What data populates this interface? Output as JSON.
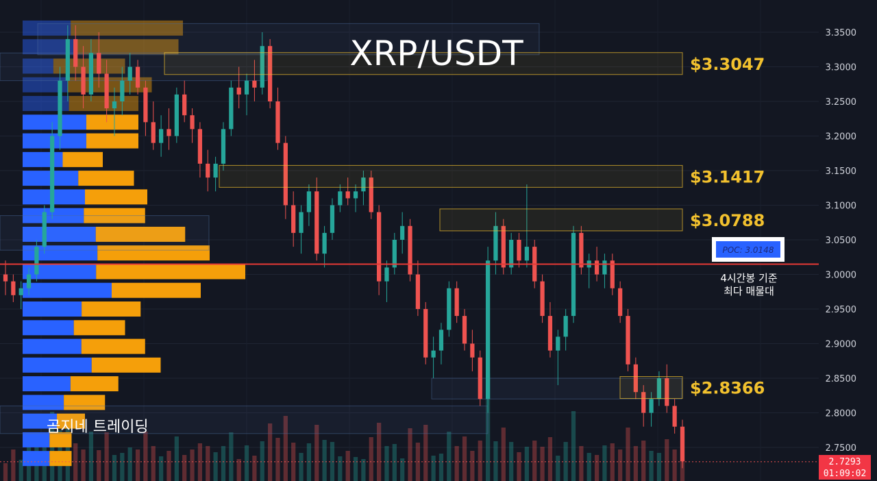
{
  "chart_data": {
    "type": "candlestick",
    "title": "XRP/USDT",
    "watermark": "곰지네 트레이딩",
    "y_axis": {
      "ylim": [
        2.72,
        3.37
      ],
      "tick_labels": [
        "3.3500",
        "3.3000",
        "3.2500",
        "3.2000",
        "3.1500",
        "3.1000",
        "3.0500",
        "3.0000",
        "2.9500",
        "2.9000",
        "2.8500",
        "2.8000",
        "2.7500"
      ],
      "tick_values": [
        3.35,
        3.3,
        3.25,
        3.2,
        3.15,
        3.1,
        3.05,
        3.0,
        2.95,
        2.9,
        2.85,
        2.8,
        2.75
      ]
    },
    "levels": [
      {
        "label": "$3.3047",
        "value": 3.3047
      },
      {
        "label": "$3.1417",
        "value": 3.1417
      },
      {
        "label": "$3.0788",
        "value": 3.0788
      },
      {
        "label": "$2.8366",
        "value": 2.8366
      }
    ],
    "poc": {
      "label": "POC: 3.0148",
      "value": 3.0148,
      "note_line1": "4시간봉 기준",
      "note_line2": "최다 매물대"
    },
    "last_price": {
      "value_label": "2.7293",
      "countdown": "01:09:02"
    },
    "colors": {
      "background": "#131722",
      "up": "#26a69a",
      "down": "#ef5350",
      "level": "#f2c12e",
      "poc_line": "#e53935",
      "vp_buy": "#2962ff",
      "vp_sell": "#f59f0a"
    },
    "volume_profile": [
      {
        "price": 3.355,
        "buy": 0.3,
        "sell": 0.7
      },
      {
        "price": 3.328,
        "buy": 0.35,
        "sell": 0.65
      },
      {
        "price": 3.3,
        "buy": 0.3,
        "sell": 0.7
      },
      {
        "price": 3.273,
        "buy": 0.35,
        "sell": 0.65
      },
      {
        "price": 3.246,
        "buy": 0.4,
        "sell": 0.6
      },
      {
        "price": 3.219,
        "buy": 0.55,
        "sell": 0.45
      },
      {
        "price": 3.192,
        "buy": 0.55,
        "sell": 0.45
      },
      {
        "price": 3.165,
        "buy": 0.5,
        "sell": 0.5
      },
      {
        "price": 3.138,
        "buy": 0.5,
        "sell": 0.5
      },
      {
        "price": 3.111,
        "buy": 0.5,
        "sell": 0.5
      },
      {
        "price": 3.084,
        "buy": 0.5,
        "sell": 0.5
      },
      {
        "price": 3.057,
        "buy": 0.45,
        "sell": 0.55
      },
      {
        "price": 3.03,
        "buy": 0.4,
        "sell": 0.6
      },
      {
        "price": 3.003,
        "buy": 0.33,
        "sell": 0.67
      },
      {
        "price": 2.976,
        "buy": 0.5,
        "sell": 0.5
      },
      {
        "price": 2.949,
        "buy": 0.5,
        "sell": 0.5
      },
      {
        "price": 2.922,
        "buy": 0.5,
        "sell": 0.5
      },
      {
        "price": 2.895,
        "buy": 0.48,
        "sell": 0.52
      },
      {
        "price": 2.868,
        "buy": 0.5,
        "sell": 0.5
      },
      {
        "price": 2.841,
        "buy": 0.5,
        "sell": 0.5
      },
      {
        "price": 2.814,
        "buy": 0.5,
        "sell": 0.5
      },
      {
        "price": 2.787,
        "buy": 0.55,
        "sell": 0.45
      },
      {
        "price": 2.76,
        "buy": 0.55,
        "sell": 0.45
      },
      {
        "price": 2.733,
        "buy": 0.55,
        "sell": 0.45
      }
    ],
    "volume_profile_totals": [
      0.72,
      0.7,
      0.46,
      0.58,
      0.52,
      0.52,
      0.52,
      0.36,
      0.5,
      0.56,
      0.55,
      0.73,
      0.84,
      1.0,
      0.8,
      0.53,
      0.46,
      0.55,
      0.62,
      0.43,
      0.37,
      0.28,
      0.22,
      0.22
    ],
    "candles": [
      [
        3.0,
        3.02,
        2.97,
        2.99
      ],
      [
        2.99,
        3.0,
        2.96,
        2.97
      ],
      [
        2.97,
        2.99,
        2.95,
        2.98
      ],
      [
        2.98,
        3.01,
        2.97,
        3.0
      ],
      [
        3.0,
        3.05,
        2.99,
        3.04
      ],
      [
        3.04,
        3.1,
        3.03,
        3.09
      ],
      [
        3.09,
        3.22,
        3.08,
        3.2
      ],
      [
        3.2,
        3.3,
        3.18,
        3.28
      ],
      [
        3.28,
        3.36,
        3.25,
        3.34
      ],
      [
        3.34,
        3.36,
        3.28,
        3.3
      ],
      [
        3.3,
        3.33,
        3.24,
        3.26
      ],
      [
        3.26,
        3.34,
        3.25,
        3.32
      ],
      [
        3.32,
        3.35,
        3.27,
        3.29
      ],
      [
        3.29,
        3.31,
        3.22,
        3.24
      ],
      [
        3.24,
        3.27,
        3.2,
        3.25
      ],
      [
        3.25,
        3.3,
        3.23,
        3.28
      ],
      [
        3.28,
        3.32,
        3.26,
        3.3
      ],
      [
        3.3,
        3.31,
        3.26,
        3.27
      ],
      [
        3.27,
        3.28,
        3.2,
        3.22
      ],
      [
        3.22,
        3.25,
        3.18,
        3.19
      ],
      [
        3.19,
        3.23,
        3.17,
        3.21
      ],
      [
        3.21,
        3.24,
        3.18,
        3.2
      ],
      [
        3.2,
        3.27,
        3.19,
        3.26
      ],
      [
        3.26,
        3.28,
        3.22,
        3.23
      ],
      [
        3.23,
        3.24,
        3.19,
        3.21
      ],
      [
        3.21,
        3.22,
        3.14,
        3.16
      ],
      [
        3.16,
        3.18,
        3.12,
        3.14
      ],
      [
        3.14,
        3.17,
        3.12,
        3.16
      ],
      [
        3.16,
        3.22,
        3.15,
        3.21
      ],
      [
        3.21,
        3.28,
        3.2,
        3.27
      ],
      [
        3.27,
        3.3,
        3.24,
        3.26
      ],
      [
        3.26,
        3.29,
        3.23,
        3.28
      ],
      [
        3.28,
        3.31,
        3.25,
        3.27
      ],
      [
        3.27,
        3.35,
        3.26,
        3.33
      ],
      [
        3.33,
        3.34,
        3.24,
        3.25
      ],
      [
        3.25,
        3.27,
        3.18,
        3.19
      ],
      [
        3.19,
        3.2,
        3.08,
        3.1
      ],
      [
        3.1,
        3.12,
        3.04,
        3.06
      ],
      [
        3.06,
        3.1,
        3.03,
        3.09
      ],
      [
        3.09,
        3.13,
        3.07,
        3.12
      ],
      [
        3.12,
        3.14,
        3.02,
        3.03
      ],
      [
        3.03,
        3.07,
        3.01,
        3.06
      ],
      [
        3.06,
        3.11,
        3.05,
        3.1
      ],
      [
        3.1,
        3.13,
        3.09,
        3.12
      ],
      [
        3.12,
        3.14,
        3.1,
        3.11
      ],
      [
        3.11,
        3.13,
        3.09,
        3.12
      ],
      [
        3.12,
        3.15,
        3.1,
        3.14
      ],
      [
        3.14,
        3.15,
        3.08,
        3.09
      ],
      [
        3.09,
        3.1,
        2.97,
        2.99
      ],
      [
        2.99,
        3.02,
        2.96,
        3.01
      ],
      [
        3.01,
        3.06,
        3.0,
        3.05
      ],
      [
        3.05,
        3.09,
        3.03,
        3.07
      ],
      [
        3.07,
        3.08,
        2.99,
        3.0
      ],
      [
        3.0,
        3.02,
        2.94,
        2.95
      ],
      [
        2.95,
        2.96,
        2.87,
        2.88
      ],
      [
        2.88,
        2.91,
        2.85,
        2.89
      ],
      [
        2.89,
        2.93,
        2.87,
        2.92
      ],
      [
        2.92,
        2.99,
        2.91,
        2.98
      ],
      [
        2.98,
        2.99,
        2.93,
        2.94
      ],
      [
        2.94,
        2.95,
        2.89,
        2.9
      ],
      [
        2.9,
        2.92,
        2.86,
        2.88
      ],
      [
        2.88,
        2.89,
        2.81,
        2.82
      ],
      [
        2.82,
        3.04,
        2.8,
        3.02
      ],
      [
        3.02,
        3.09,
        3.0,
        3.07
      ],
      [
        3.07,
        3.08,
        3.0,
        3.01
      ],
      [
        3.01,
        3.06,
        3.0,
        3.05
      ],
      [
        3.05,
        3.06,
        3.01,
        3.02
      ],
      [
        3.02,
        3.13,
        3.01,
        3.04
      ],
      [
        3.04,
        3.05,
        2.98,
        2.99
      ],
      [
        2.99,
        3.0,
        2.93,
        2.94
      ],
      [
        2.94,
        2.96,
        2.88,
        2.89
      ],
      [
        2.89,
        2.92,
        2.84,
        2.91
      ],
      [
        2.91,
        2.95,
        2.89,
        2.94
      ],
      [
        2.94,
        3.07,
        2.93,
        3.06
      ],
      [
        3.06,
        3.07,
        3.0,
        3.01
      ],
      [
        3.01,
        3.03,
        2.98,
        3.02
      ],
      [
        3.02,
        3.04,
        2.99,
        3.0
      ],
      [
        3.0,
        3.03,
        2.98,
        3.02
      ],
      [
        3.02,
        3.03,
        2.97,
        2.98
      ],
      [
        2.98,
        2.99,
        2.93,
        2.94
      ],
      [
        2.94,
        2.95,
        2.86,
        2.87
      ],
      [
        2.87,
        2.88,
        2.82,
        2.83
      ],
      [
        2.83,
        2.84,
        2.78,
        2.8
      ],
      [
        2.8,
        2.83,
        2.78,
        2.82
      ],
      [
        2.82,
        2.86,
        2.81,
        2.85
      ],
      [
        2.85,
        2.87,
        2.8,
        2.81
      ],
      [
        2.81,
        2.82,
        2.77,
        2.78
      ],
      [
        2.78,
        2.79,
        2.72,
        2.73
      ]
    ]
  }
}
